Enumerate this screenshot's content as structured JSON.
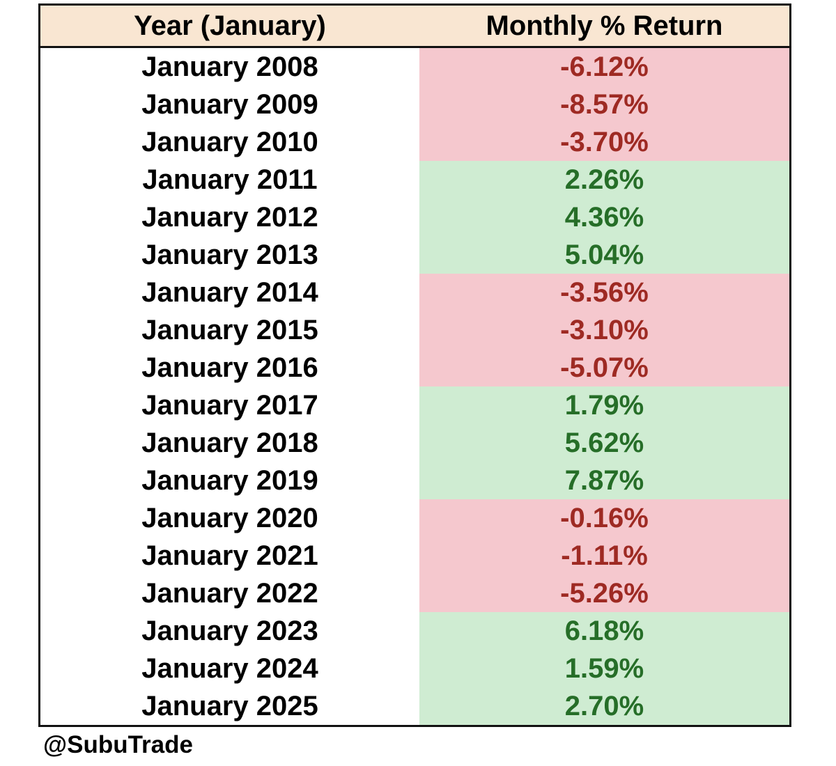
{
  "colors": {
    "header_bg": "#f9e6d2",
    "negative_bg": "#f5c8ce",
    "positive_bg": "#cfecd2",
    "negative_text": "#9e2a23",
    "positive_text": "#266e28",
    "border": "#111111"
  },
  "table": {
    "headers": [
      "Year (January)",
      "Monthly % Return"
    ],
    "rows": [
      {
        "year": "January 2008",
        "return": "-6.12%",
        "sign": "negative"
      },
      {
        "year": "January 2009",
        "return": "-8.57%",
        "sign": "negative"
      },
      {
        "year": "January 2010",
        "return": "-3.70%",
        "sign": "negative"
      },
      {
        "year": "January 2011",
        "return": "2.26%",
        "sign": "positive"
      },
      {
        "year": "January 2012",
        "return": "4.36%",
        "sign": "positive"
      },
      {
        "year": "January 2013",
        "return": "5.04%",
        "sign": "positive"
      },
      {
        "year": "January 2014",
        "return": "-3.56%",
        "sign": "negative"
      },
      {
        "year": "January 2015",
        "return": "-3.10%",
        "sign": "negative"
      },
      {
        "year": "January 2016",
        "return": "-5.07%",
        "sign": "negative"
      },
      {
        "year": "January 2017",
        "return": "1.79%",
        "sign": "positive"
      },
      {
        "year": "January 2018",
        "return": "5.62%",
        "sign": "positive"
      },
      {
        "year": "January 2019",
        "return": "7.87%",
        "sign": "positive"
      },
      {
        "year": "January 2020",
        "return": "-0.16%",
        "sign": "negative"
      },
      {
        "year": "January 2021",
        "return": "-1.11%",
        "sign": "negative"
      },
      {
        "year": "January 2022",
        "return": "-5.26%",
        "sign": "negative"
      },
      {
        "year": "January 2023",
        "return": "6.18%",
        "sign": "positive"
      },
      {
        "year": "January 2024",
        "return": "1.59%",
        "sign": "positive"
      },
      {
        "year": "January 2025",
        "return": "2.70%",
        "sign": "positive"
      }
    ]
  },
  "watermark": "@SubuTrade",
  "chart_data": {
    "type": "table",
    "title": "",
    "columns": [
      "Year (January)",
      "Monthly % Return"
    ],
    "categories": [
      "January 2008",
      "January 2009",
      "January 2010",
      "January 2011",
      "January 2012",
      "January 2013",
      "January 2014",
      "January 2015",
      "January 2016",
      "January 2017",
      "January 2018",
      "January 2019",
      "January 2020",
      "January 2021",
      "January 2022",
      "January 2023",
      "January 2024",
      "January 2025"
    ],
    "values_pct": [
      -6.12,
      -8.57,
      -3.7,
      2.26,
      4.36,
      5.04,
      -3.56,
      -3.1,
      -5.07,
      1.79,
      5.62,
      7.87,
      -0.16,
      -1.11,
      -5.26,
      6.18,
      1.59,
      2.7
    ],
    "conditional_format": "negative values pink background with dark red text, positive values light green background with dark green text"
  }
}
